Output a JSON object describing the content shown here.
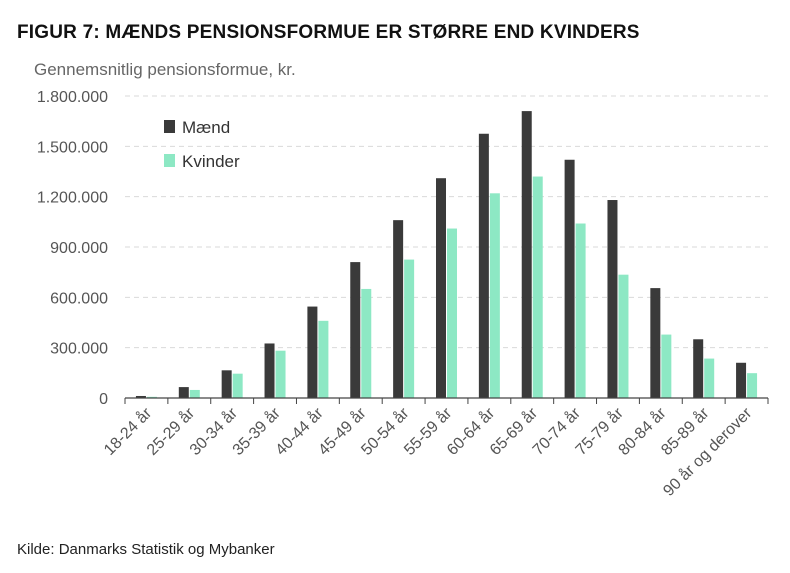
{
  "title": "FIGUR 7: MÆNDS PENSIONSFORMUE ER STØRRE END KVINDERS",
  "source": "Kilde: Danmarks Statistik og Mybanker",
  "colors": {
    "men": "#3a3a3a",
    "women": "#8de8c4",
    "grid": "#d9d9d9",
    "axis": "#444444"
  },
  "chart_data": {
    "type": "bar",
    "title": "FIGUR 7: MÆNDS PENSIONSFORMUE ER STØRRE END KVINDERS",
    "ylabel": "Gennemsnitlig pensionsformue, kr.",
    "xlabel": "",
    "ylim": [
      0,
      1800000
    ],
    "yticks": [
      0,
      300000,
      600000,
      900000,
      1200000,
      1500000,
      1800000
    ],
    "ytick_labels": [
      "0",
      "300.000",
      "600.000",
      "900.000",
      "1.200.000",
      "1.500.000",
      "1.800.000"
    ],
    "grid": true,
    "legend_position": "top-left",
    "categories": [
      "18-24 år",
      "25-29 år",
      "30-34 år",
      "35-39 år",
      "40-44 år",
      "45-49 år",
      "50-54 år",
      "55-59 år",
      "60-64 år",
      "65-69 år",
      "70-74 år",
      "75-79 år",
      "80-84 år",
      "85-89 år",
      "90 år og derover"
    ],
    "series": [
      {
        "name": "Mænd",
        "values": [
          12000,
          65000,
          165000,
          325000,
          545000,
          810000,
          1060000,
          1310000,
          1575000,
          1710000,
          1420000,
          1180000,
          655000,
          350000,
          210000
        ]
      },
      {
        "name": "Kvinder",
        "values": [
          7000,
          48000,
          145000,
          282000,
          460000,
          650000,
          825000,
          1010000,
          1220000,
          1320000,
          1040000,
          735000,
          378000,
          235000,
          148000
        ]
      }
    ]
  }
}
